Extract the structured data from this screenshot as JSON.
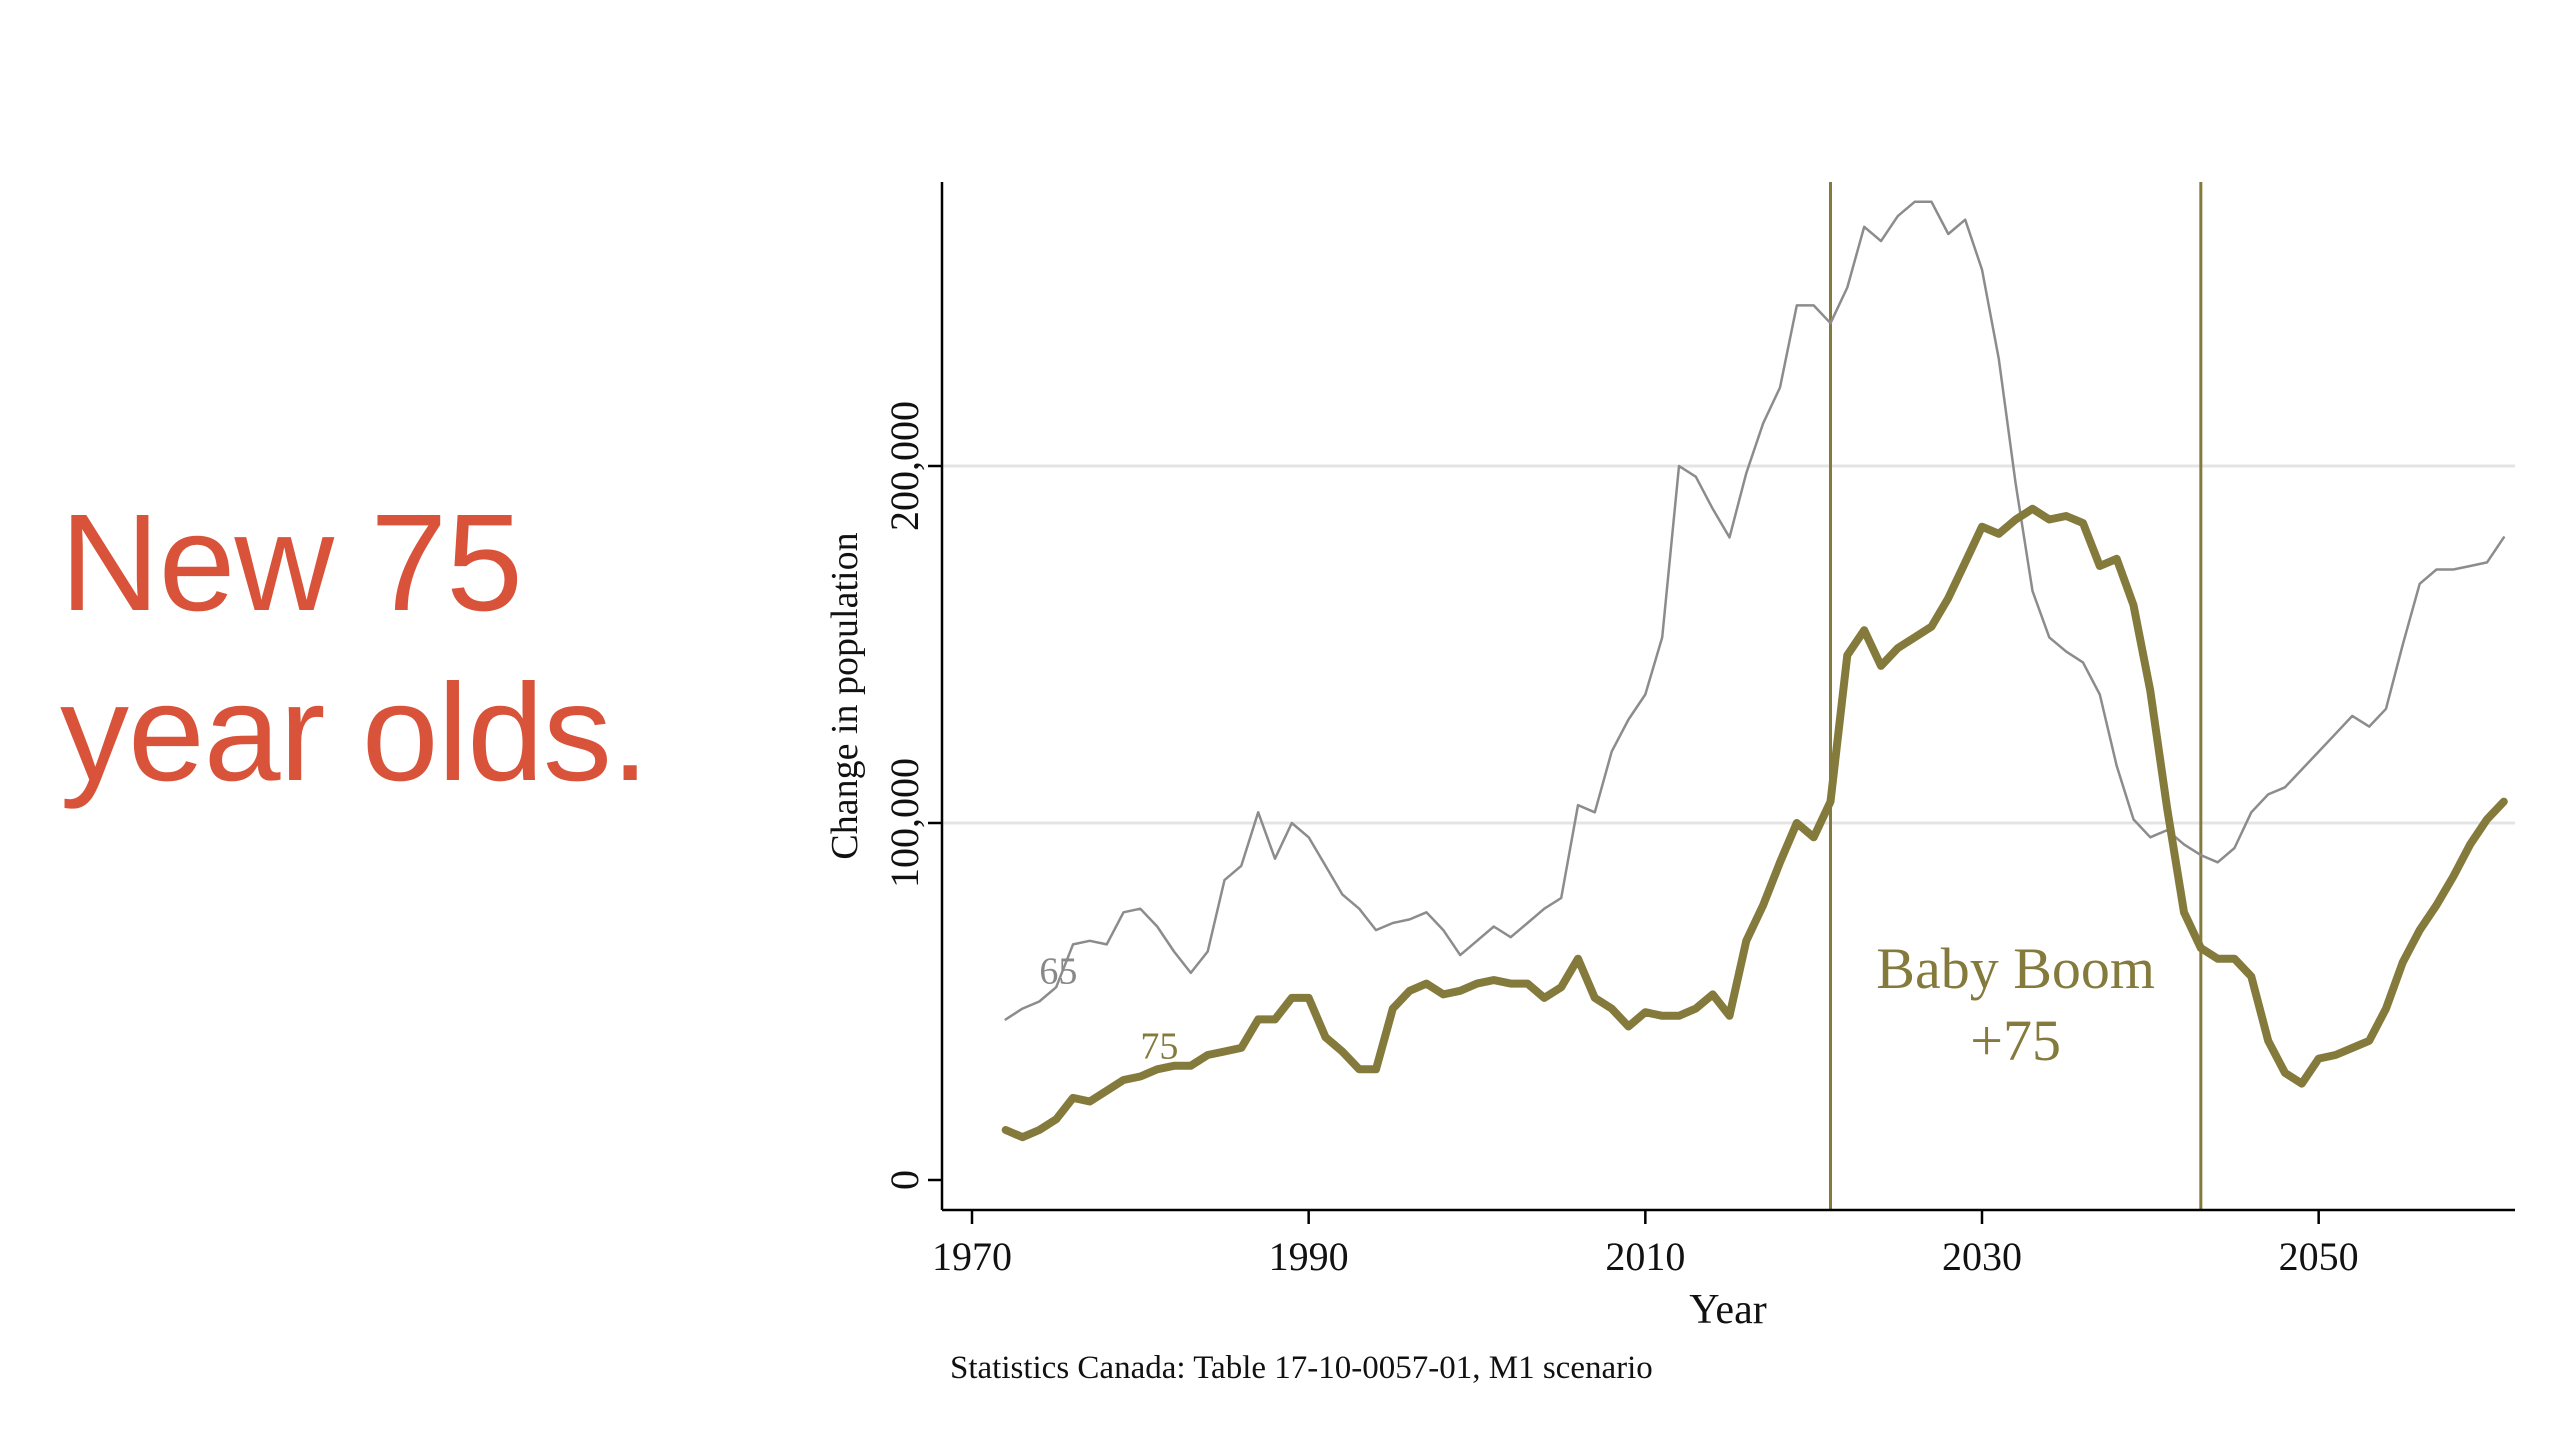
{
  "slide": {
    "title_line1": "New 75",
    "title_line2": "year olds.",
    "title_color": "#d9533a"
  },
  "chart_data": {
    "type": "line",
    "title": "",
    "xlabel": "Year",
    "ylabel": "Change in population",
    "xlim": [
      1970,
      2062
    ],
    "ylim": [
      0,
      280000
    ],
    "x_ticks": [
      1970,
      1990,
      2010,
      2030,
      2050
    ],
    "x_tick_labels": [
      "1970",
      "1990",
      "2010",
      "2030",
      "2050"
    ],
    "y_ticks": [
      0,
      100000,
      200000
    ],
    "y_tick_labels": [
      "0",
      "100,000",
      "200,000"
    ],
    "grid": "horizontal",
    "source_note": "Statistics Canada: Table 17-10-0057-01, M1 scenario",
    "annotation_lines": [
      "Baby Boom",
      "+75"
    ],
    "vertical_lines": [
      2021,
      2043
    ],
    "colors": {
      "boom": "#847a3c",
      "line65": "#8c8c8c",
      "grid": "#e4e4e4",
      "axis": "#000000"
    },
    "x": [
      1972,
      1973,
      1974,
      1975,
      1976,
      1977,
      1978,
      1979,
      1980,
      1981,
      1982,
      1983,
      1984,
      1985,
      1986,
      1987,
      1988,
      1989,
      1990,
      1991,
      1992,
      1993,
      1994,
      1995,
      1996,
      1997,
      1998,
      1999,
      2000,
      2001,
      2002,
      2003,
      2004,
      2005,
      2006,
      2007,
      2008,
      2009,
      2010,
      2011,
      2012,
      2013,
      2014,
      2015,
      2016,
      2017,
      2018,
      2019,
      2020,
      2021,
      2022,
      2023,
      2024,
      2025,
      2026,
      2027,
      2028,
      2029,
      2030,
      2031,
      2032,
      2033,
      2034,
      2035,
      2036,
      2037,
      2038,
      2039,
      2040,
      2041,
      2042,
      2043,
      2044,
      2045,
      2046,
      2047,
      2048,
      2049,
      2050,
      2051,
      2052,
      2053,
      2054,
      2055,
      2056,
      2057,
      2058,
      2059,
      2060,
      2061
    ],
    "series": [
      {
        "name": "65",
        "label": "65",
        "values": [
          45000,
          48000,
          50000,
          54000,
          66000,
          67000,
          66000,
          75000,
          76000,
          71000,
          64000,
          58000,
          64000,
          84000,
          88000,
          103000,
          90000,
          100000,
          96000,
          88000,
          80000,
          76000,
          70000,
          72000,
          73000,
          75000,
          70000,
          63000,
          67000,
          71000,
          68000,
          72000,
          76000,
          79000,
          105000,
          103000,
          120000,
          129000,
          136000,
          152000,
          200000,
          197000,
          188000,
          180000,
          198000,
          212000,
          222000,
          245000,
          245000,
          240000,
          250000,
          267000,
          263000,
          270000,
          274000,
          274000,
          265000,
          269000,
          255000,
          230000,
          195000,
          165000,
          152000,
          148000,
          145000,
          136000,
          116000,
          101000,
          96000,
          98000,
          94000,
          91000,
          89000,
          93000,
          103000,
          108000,
          110000,
          115000,
          120000,
          125000,
          130000,
          127000,
          132000,
          150000,
          167000,
          171000,
          171000,
          172000,
          173000,
          180000
        ]
      },
      {
        "name": "75",
        "label": "75",
        "values": [
          14000,
          12000,
          14000,
          17000,
          23000,
          22000,
          25000,
          28000,
          29000,
          31000,
          32000,
          32000,
          35000,
          36000,
          37000,
          45000,
          45000,
          51000,
          51000,
          40000,
          36000,
          31000,
          31000,
          48000,
          53000,
          55000,
          52000,
          53000,
          55000,
          56000,
          55000,
          55000,
          51000,
          54000,
          62000,
          51000,
          48000,
          43000,
          47000,
          46000,
          46000,
          48000,
          52000,
          46000,
          67000,
          77000,
          89000,
          100000,
          96000,
          106000,
          147000,
          154000,
          144000,
          149000,
          152000,
          155000,
          163000,
          173000,
          183000,
          181000,
          185000,
          188000,
          185000,
          186000,
          184000,
          172000,
          174000,
          161000,
          137000,
          104000,
          75000,
          65000,
          62000,
          62000,
          57000,
          39000,
          30000,
          27000,
          34000,
          35000,
          37000,
          39000,
          48000,
          61000,
          70000,
          77000,
          85000,
          94000,
          101000,
          106000
        ]
      }
    ],
    "series_label_positions": [
      {
        "name": "65",
        "x": 1974,
        "y": 55000
      },
      {
        "name": "75",
        "x": 1980,
        "y": 34000
      }
    ]
  }
}
